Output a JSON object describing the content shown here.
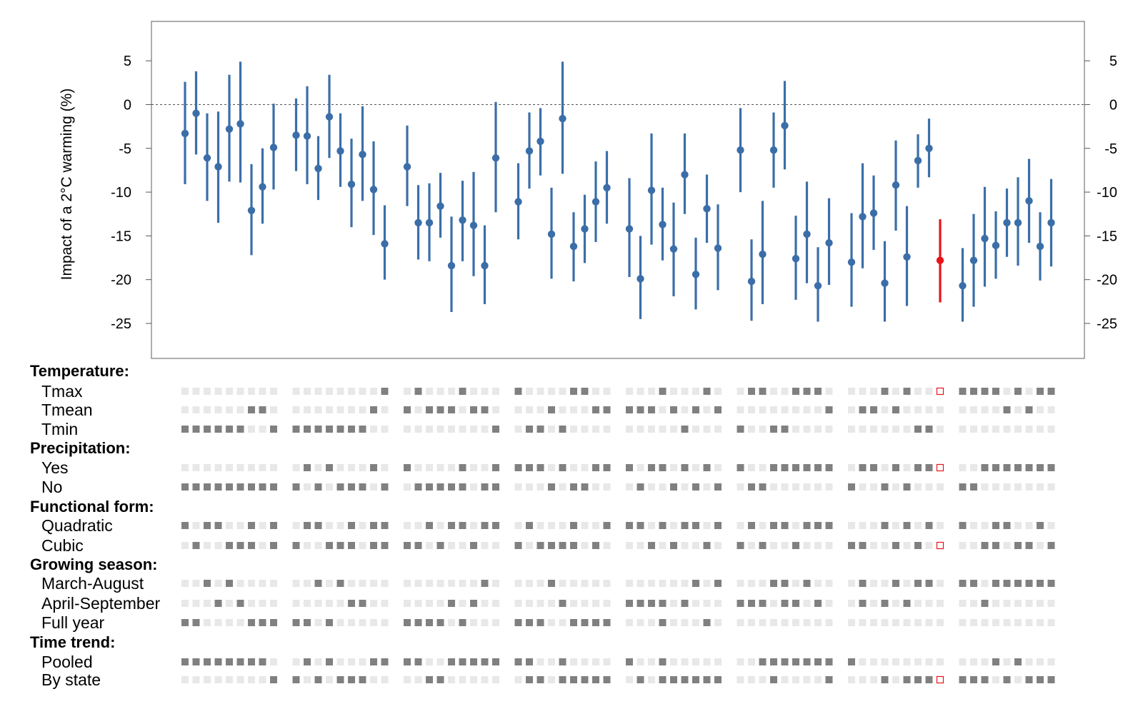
{
  "colors": {
    "estimate": "#3B6EA8",
    "highlight": "#E8141A",
    "on": "#808080",
    "off": "#E8E8E8",
    "zero_line": "#555555"
  },
  "chart_data": {
    "type": "scatter",
    "subtype": "point-range specification curve",
    "ylabel": "Impact of a 2°C warming (%)",
    "ylim": [
      -29,
      9.5
    ],
    "yticks": [
      5,
      0,
      -5,
      -10,
      -15,
      -20,
      -25
    ],
    "ytick_labels": [
      "5",
      "0",
      "-5",
      "-10",
      "-15",
      "-20",
      "-25"
    ],
    "reference_line": 0,
    "highlight_index": 62,
    "groups": [
      [
        [
          -3.3,
          2.6,
          -9.1
        ],
        [
          -1.0,
          3.8,
          -5.7
        ],
        [
          -6.1,
          -1.0,
          -11.0
        ],
        [
          -7.1,
          -0.8,
          -13.5
        ],
        [
          -2.8,
          3.4,
          -8.8
        ],
        [
          -2.2,
          4.9,
          -8.9
        ],
        [
          -12.1,
          -6.8,
          -17.2
        ],
        [
          -9.4,
          -5.0,
          -13.6
        ],
        [
          -4.9,
          0.1,
          -9.7
        ]
      ],
      [
        [
          -3.5,
          0.7,
          -7.6
        ],
        [
          -3.6,
          2.1,
          -9.1
        ],
        [
          -7.3,
          -3.6,
          -10.9
        ],
        [
          -1.4,
          3.4,
          -6.1
        ],
        [
          -5.3,
          -1.0,
          -9.4
        ],
        [
          -9.1,
          -3.9,
          -14.0
        ],
        [
          -5.7,
          -0.2,
          -11.0
        ],
        [
          -9.7,
          -4.2,
          -14.9
        ],
        [
          -15.9,
          -11.5,
          -20.0
        ]
      ],
      [
        [
          -7.1,
          -2.4,
          -11.6
        ],
        [
          -13.5,
          -9.2,
          -17.7
        ],
        [
          -13.5,
          -9.0,
          -17.9
        ],
        [
          -11.6,
          -7.8,
          -15.2
        ],
        [
          -18.4,
          -12.8,
          -23.7
        ],
        [
          -13.2,
          -8.7,
          -17.9
        ],
        [
          -13.8,
          -7.7,
          -19.6
        ],
        [
          -18.4,
          -13.8,
          -22.8
        ],
        [
          -6.1,
          0.3,
          -12.3
        ]
      ],
      [
        [
          -11.1,
          -6.7,
          -15.4
        ],
        [
          -5.3,
          -0.9,
          -9.6
        ],
        [
          -4.2,
          -0.4,
          -8.1
        ],
        [
          -14.8,
          -9.5,
          -19.9
        ],
        [
          -1.6,
          4.9,
          -7.9
        ],
        [
          -16.2,
          -12.3,
          -20.2
        ],
        [
          -14.2,
          -10.3,
          -18.1
        ],
        [
          -11.1,
          -6.5,
          -15.7
        ],
        [
          -9.5,
          -5.3,
          -13.6
        ]
      ],
      [
        [
          -14.2,
          -8.4,
          -19.7
        ],
        [
          -19.9,
          -15.0,
          -24.5
        ],
        [
          -9.8,
          -3.3,
          -16.0
        ],
        [
          -13.7,
          -9.5,
          -17.8
        ],
        [
          -16.5,
          -11.2,
          -21.9
        ],
        [
          -8.0,
          -3.3,
          -12.5
        ],
        [
          -19.4,
          -15.2,
          -23.4
        ],
        [
          -11.9,
          -8.0,
          -15.8
        ],
        [
          -16.4,
          -11.4,
          -21.2
        ]
      ],
      [
        [
          -5.2,
          -0.4,
          -10.0
        ],
        [
          -20.2,
          -15.4,
          -24.7
        ],
        [
          -17.1,
          -11.0,
          -22.8
        ],
        [
          -5.2,
          -0.9,
          -9.5
        ],
        [
          -2.4,
          2.7,
          -7.4
        ],
        [
          -17.6,
          -12.7,
          -22.3
        ],
        [
          -14.8,
          -8.8,
          -20.4
        ],
        [
          -20.7,
          -16.3,
          -24.8
        ],
        [
          -15.8,
          -10.7,
          -20.6
        ]
      ],
      [
        [
          -18.0,
          -12.4,
          -23.1
        ],
        [
          -12.8,
          -6.7,
          -18.7
        ],
        [
          -12.4,
          -8.1,
          -16.6
        ],
        [
          -20.4,
          -15.6,
          -24.8
        ],
        [
          -9.2,
          -4.1,
          -14.4
        ],
        [
          -17.4,
          -11.6,
          -23.0
        ],
        [
          -6.4,
          -3.4,
          -9.5
        ],
        [
          -5.0,
          -1.6,
          -8.3
        ],
        [
          -17.8,
          -13.1,
          -22.6
        ]
      ],
      [
        [
          -20.7,
          -16.4,
          -24.8
        ],
        [
          -17.8,
          -12.5,
          -23.1
        ],
        [
          -15.3,
          -9.4,
          -20.8
        ],
        [
          -16.1,
          -12.2,
          -19.9
        ],
        [
          -13.5,
          -9.6,
          -17.4
        ],
        [
          -13.5,
          -8.3,
          -18.4
        ],
        [
          -11.0,
          -6.2,
          -15.8
        ],
        [
          -16.2,
          -12.3,
          -20.1
        ],
        [
          -13.5,
          -8.5,
          -18.5
        ]
      ]
    ],
    "indicators": {
      "groups": [
        {
          "title": "Temperature:",
          "rows": [
            {
              "label": "Tmax",
              "on": [
                [],
                [
                  8
                ],
                [
                  1,
                  5
                ],
                [
                  0,
                  5,
                  6
                ],
                [
                  3,
                  7
                ],
                [
                  1,
                  2,
                  5,
                  6,
                  7
                ],
                [
                  3,
                  5,
                  8
                ],
                [
                  0,
                  1,
                  2,
                  3,
                  5,
                  7,
                  8
                ]
              ]
            },
            {
              "label": "Tmean",
              "on": [
                [
                  6,
                  7
                ],
                [
                  7
                ],
                [
                  0,
                  2,
                  3,
                  4,
                  6,
                  7
                ],
                [
                  3,
                  7,
                  8
                ],
                [
                  0,
                  1,
                  2,
                  4,
                  6,
                  8
                ],
                [
                  8
                ],
                [
                  1,
                  2,
                  4
                ],
                [
                  4,
                  6
                ]
              ]
            },
            {
              "label": "Tmin",
              "on": [
                [
                  0,
                  1,
                  2,
                  3,
                  4,
                  5,
                  8
                ],
                [
                  0,
                  1,
                  2,
                  3,
                  4,
                  5,
                  6
                ],
                [
                  8
                ],
                [
                  1,
                  2,
                  4
                ],
                [
                  5
                ],
                [
                  0,
                  3,
                  4
                ],
                [
                  6,
                  7
                ],
                []
              ]
            }
          ]
        },
        {
          "title": "Precipitation:",
          "rows": [
            {
              "label": "Yes",
              "on": [
                [],
                [
                  1,
                  3,
                  7
                ],
                [
                  0,
                  5,
                  8
                ],
                [
                  0,
                  1,
                  2,
                  4,
                  7,
                  8
                ],
                [
                  0,
                  2,
                  3,
                  5,
                  7
                ],
                [
                  0,
                  3,
                  4,
                  5,
                  6,
                  7,
                  8
                ],
                [
                  1,
                  2,
                  4,
                  6,
                  7,
                  8
                ],
                [
                  2,
                  3,
                  4,
                  5,
                  6,
                  7,
                  8
                ]
              ]
            },
            {
              "label": "No",
              "on": [
                [
                  0,
                  1,
                  2,
                  3,
                  4,
                  5,
                  6,
                  7,
                  8
                ],
                [
                  0,
                  2,
                  4,
                  5,
                  6,
                  8
                ],
                [
                  1,
                  2,
                  3,
                  4,
                  5,
                  7,
                  8
                ],
                [
                  3,
                  5,
                  6
                ],
                [
                  1,
                  4,
                  6,
                  8
                ],
                [
                  1,
                  2
                ],
                [
                  0,
                  3,
                  5
                ],
                [
                  0,
                  1
                ]
              ]
            }
          ]
        },
        {
          "title": "Functional form:",
          "rows": [
            {
              "label": "Quadratic",
              "on": [
                [
                  0,
                  2,
                  3,
                  6,
                  8
                ],
                [
                  1,
                  2,
                  5,
                  7,
                  8
                ],
                [
                  2,
                  4,
                  5,
                  7,
                  8
                ],
                [
                  1,
                  5,
                  8
                ],
                [
                  0,
                  1,
                  3,
                  5,
                  6,
                  8
                ],
                [
                  1,
                  3,
                  4,
                  6,
                  7,
                  8
                ],
                [
                  3,
                  5,
                  7
                ],
                [
                  0,
                  3,
                  4,
                  7
                ]
              ]
            },
            {
              "label": "Cubic",
              "on": [
                [
                  1,
                  4,
                  5,
                  6,
                  8
                ],
                [
                  0,
                  3,
                  4,
                  5,
                  7,
                  8
                ],
                [
                  0,
                  1,
                  3,
                  6
                ],
                [
                  0,
                  2,
                  3,
                  4,
                  5,
                  7
                ],
                [
                  2,
                  4,
                  7
                ],
                [
                  0,
                  2,
                  5
                ],
                [
                  0,
                  1,
                  4,
                  6,
                  8
                ],
                [
                  2,
                  3,
                  5,
                  6,
                  8
                ]
              ]
            }
          ]
        },
        {
          "title": "Growing season:",
          "rows": [
            {
              "label": "March-August",
              "on": [
                [
                  2,
                  4
                ],
                [
                  2,
                  4
                ],
                [
                  7
                ],
                [
                  3
                ],
                [
                  6,
                  8
                ],
                [
                  3,
                  4,
                  6
                ],
                [
                  1,
                  4,
                  6,
                  7
                ],
                [
                  0,
                  1,
                  3,
                  4,
                  5,
                  6,
                  7,
                  8
                ]
              ]
            },
            {
              "label": "April-September",
              "on": [
                [
                  3,
                  5
                ],
                [
                  5,
                  6
                ],
                [
                  4,
                  6
                ],
                [
                  4
                ],
                [
                  0,
                  1,
                  2,
                  3,
                  5
                ],
                [
                  0,
                  1,
                  2,
                  4,
                  5,
                  7
                ],
                [
                  1,
                  3,
                  5
                ],
                [
                  2
                ]
              ]
            },
            {
              "label": "Full year",
              "on": [
                [
                  0,
                  1,
                  6,
                  7,
                  8
                ],
                [
                  0,
                  1,
                  3
                ],
                [
                  0,
                  1,
                  2,
                  3,
                  5
                ],
                [
                  0,
                  1,
                  2,
                  5,
                  6,
                  7,
                  8
                ],
                [
                  3,
                  7
                ],
                [],
                [],
                []
              ]
            }
          ]
        },
        {
          "title": "Time trend:",
          "rows": [
            {
              "label": "Pooled",
              "on": [
                [
                  0,
                  1,
                  2,
                  3,
                  4,
                  5,
                  6,
                  7
                ],
                [
                  1,
                  3,
                  7,
                  8
                ],
                [
                  0,
                  1,
                  4,
                  5,
                  6,
                  7,
                  8
                ],
                [
                  0,
                  1,
                  4
                ],
                [
                  0,
                  3
                ],
                [
                  2,
                  3,
                  4,
                  5,
                  6,
                  7,
                  8
                ],
                [
                  0
                ],
                [
                  3,
                  5
                ]
              ]
            },
            {
              "label": "By state",
              "on": [
                [
                  8
                ],
                [
                  0,
                  2,
                  4,
                  5,
                  6
                ],
                [
                  2,
                  3
                ],
                [
                  1,
                  2,
                  4,
                  5,
                  6,
                  7,
                  8
                ],
                [
                  1,
                  3,
                  4,
                  5,
                  6,
                  7,
                  8
                ],
                [
                  3,
                  8
                ],
                [
                  3,
                  5,
                  6,
                  7,
                  8
                ],
                [
                  0,
                  1,
                  2,
                  4,
                  6,
                  7,
                  8
                ]
              ]
            }
          ]
        }
      ]
    }
  }
}
